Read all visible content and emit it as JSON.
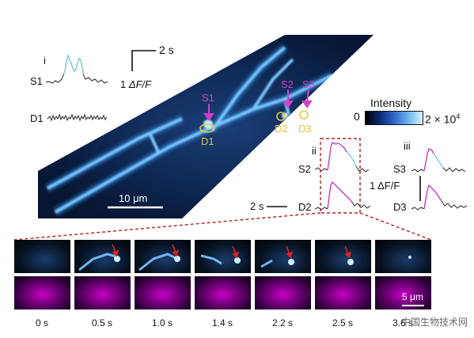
{
  "panel_i": {
    "label": "i",
    "trace1": "S1",
    "trace2": "D1"
  },
  "scale_top": {
    "time": "2 s",
    "amp_prefix": "1 ",
    "amp_symbol": "ΔF/F"
  },
  "image_labels": {
    "s1": "S1",
    "d1": "D1",
    "s2": "S2",
    "d2": "D2",
    "s3": "S3",
    "d3": "D3",
    "scalebar": "10 μm"
  },
  "colorbar": {
    "title": "Intensity",
    "min": "0",
    "max": "2 × 10",
    "max_exp": "4"
  },
  "panel_ii": {
    "label": "ii",
    "trace1": "S2",
    "trace2": "D2",
    "time_scale": "2 s"
  },
  "panel_iii": {
    "label": "iii",
    "trace1": "S3",
    "trace2": "D3",
    "amp": "1 ΔF/F"
  },
  "montage": {
    "times": [
      "0 s",
      "0.5 s",
      "1.0 s",
      "1.4 s",
      "2.2 s",
      "2.5 s",
      "3.6 s"
    ],
    "scalebar": "5 μm"
  },
  "watermark": "中国生物技术网",
  "colors": {
    "magenta": "#d040c8",
    "yellow": "#e8c440",
    "cyan": "#7ec8e8",
    "red_arrow": "#e02020"
  }
}
